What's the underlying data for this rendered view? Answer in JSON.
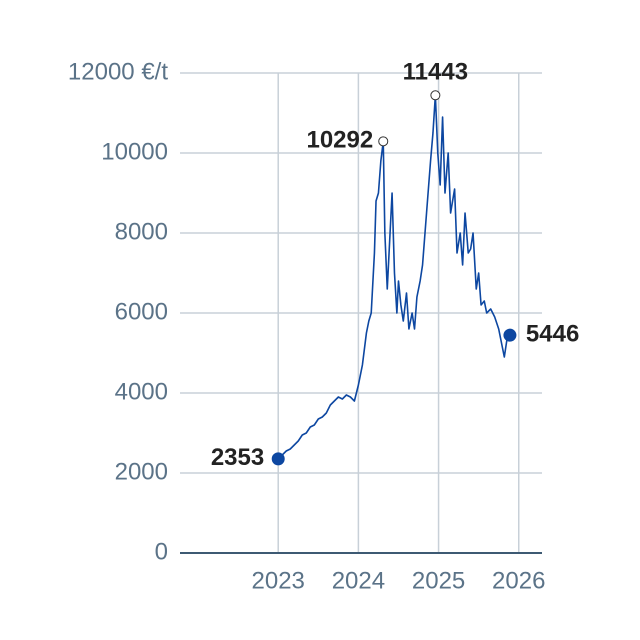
{
  "chart_data": {
    "type": "line",
    "color": "#0d47a1",
    "x": [
      2023.0,
      2023.05,
      2023.1,
      2023.15,
      2023.2,
      2023.25,
      2023.3,
      2023.35,
      2023.4,
      2023.45,
      2023.5,
      2023.55,
      2023.6,
      2023.65,
      2023.7,
      2023.75,
      2023.8,
      2023.85,
      2023.9,
      2023.95,
      2024.0,
      2024.05,
      2024.1,
      2024.13,
      2024.16,
      2024.2,
      2024.22,
      2024.25,
      2024.28,
      2024.31,
      2024.33,
      2024.36,
      2024.39,
      2024.42,
      2024.45,
      2024.48,
      2024.5,
      2024.53,
      2024.56,
      2024.6,
      2024.63,
      2024.67,
      2024.7,
      2024.73,
      2024.77,
      2024.8,
      2024.85,
      2024.9,
      2024.93,
      2024.96,
      2024.99,
      2025.02,
      2025.05,
      2025.08,
      2025.12,
      2025.15,
      2025.2,
      2025.23,
      2025.27,
      2025.3,
      2025.33,
      2025.37,
      2025.4,
      2025.43,
      2025.47,
      2025.5,
      2025.53,
      2025.57,
      2025.6,
      2025.65,
      2025.7,
      2025.75,
      2025.8,
      2025.82,
      2025.85,
      2025.89
    ],
    "values": [
      2353,
      2450,
      2550,
      2600,
      2700,
      2800,
      2950,
      3000,
      3150,
      3200,
      3350,
      3400,
      3500,
      3700,
      3800,
      3900,
      3850,
      3950,
      3900,
      3800,
      4200,
      4700,
      5500,
      5800,
      6000,
      7500,
      8800,
      9000,
      9800,
      10292,
      8000,
      6600,
      7800,
      9000,
      7000,
      6000,
      6800,
      6200,
      5800,
      6500,
      5600,
      6000,
      5600,
      6400,
      6800,
      7200,
      8500,
      9800,
      10500,
      11443,
      10000,
      9200,
      10900,
      9000,
      10000,
      8500,
      9100,
      7500,
      8000,
      7200,
      8500,
      7500,
      7600,
      8000,
      6600,
      7000,
      6200,
      6300,
      6000,
      6100,
      5900,
      5600,
      5100,
      4900,
      5300,
      5446
    ],
    "annotations": [
      {
        "x": 2023.0,
        "value": 2353,
        "marker": "filled"
      },
      {
        "x": 2024.31,
        "value": 10292,
        "marker": "hollow"
      },
      {
        "x": 2024.96,
        "value": 11443,
        "marker": "hollow"
      },
      {
        "x": 2025.89,
        "value": 5446,
        "marker": "filled"
      }
    ],
    "xlim": [
      2021.775,
      2026.29
    ],
    "xticks": [
      2023,
      2024,
      2025,
      2026
    ],
    "ylim": [
      0,
      12000
    ],
    "yticks": [
      0,
      2000,
      4000,
      6000,
      8000,
      10000,
      {
        "value": 12000,
        "label": "12000 €/t"
      }
    ],
    "grid": true
  }
}
